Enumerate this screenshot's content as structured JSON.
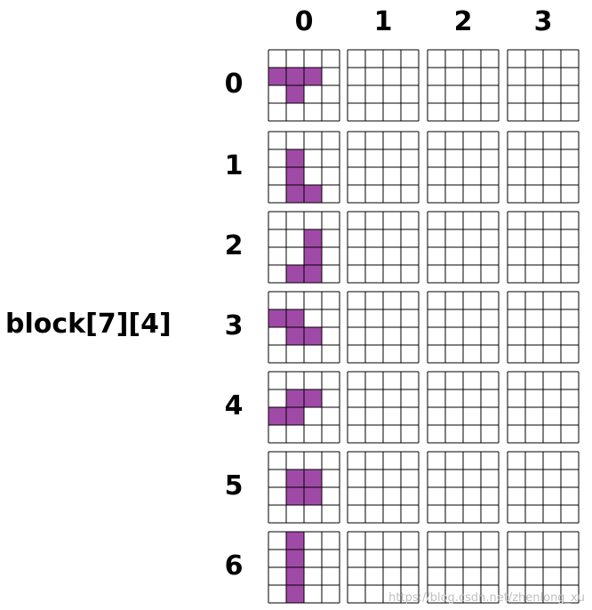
{
  "title": "block[7][4]",
  "column_labels": [
    "0",
    "1",
    "2",
    "3"
  ],
  "row_labels": [
    "0",
    "1",
    "2",
    "3",
    "4",
    "5",
    "6"
  ],
  "watermark": "https://blog.csdn.net/zhenlong_xu",
  "colors": {
    "filled": "#a04aa8",
    "grid_line": "#000000",
    "background": "#ffffff"
  },
  "shapes": [
    {
      "name": "T",
      "cells": [
        [
          1,
          0
        ],
        [
          1,
          1
        ],
        [
          1,
          2
        ],
        [
          2,
          1
        ]
      ]
    },
    {
      "name": "L",
      "cells": [
        [
          1,
          1
        ],
        [
          2,
          1
        ],
        [
          3,
          1
        ],
        [
          3,
          2
        ]
      ]
    },
    {
      "name": "J",
      "cells": [
        [
          1,
          2
        ],
        [
          2,
          2
        ],
        [
          3,
          1
        ],
        [
          3,
          2
        ]
      ]
    },
    {
      "name": "Z",
      "cells": [
        [
          1,
          0
        ],
        [
          1,
          1
        ],
        [
          2,
          1
        ],
        [
          2,
          2
        ]
      ]
    },
    {
      "name": "S",
      "cells": [
        [
          1,
          1
        ],
        [
          1,
          2
        ],
        [
          2,
          0
        ],
        [
          2,
          1
        ]
      ]
    },
    {
      "name": "O",
      "cells": [
        [
          1,
          1
        ],
        [
          1,
          2
        ],
        [
          2,
          1
        ],
        [
          2,
          2
        ]
      ]
    },
    {
      "name": "I",
      "cells": [
        [
          0,
          1
        ],
        [
          1,
          1
        ],
        [
          2,
          1
        ],
        [
          3,
          1
        ]
      ]
    }
  ]
}
